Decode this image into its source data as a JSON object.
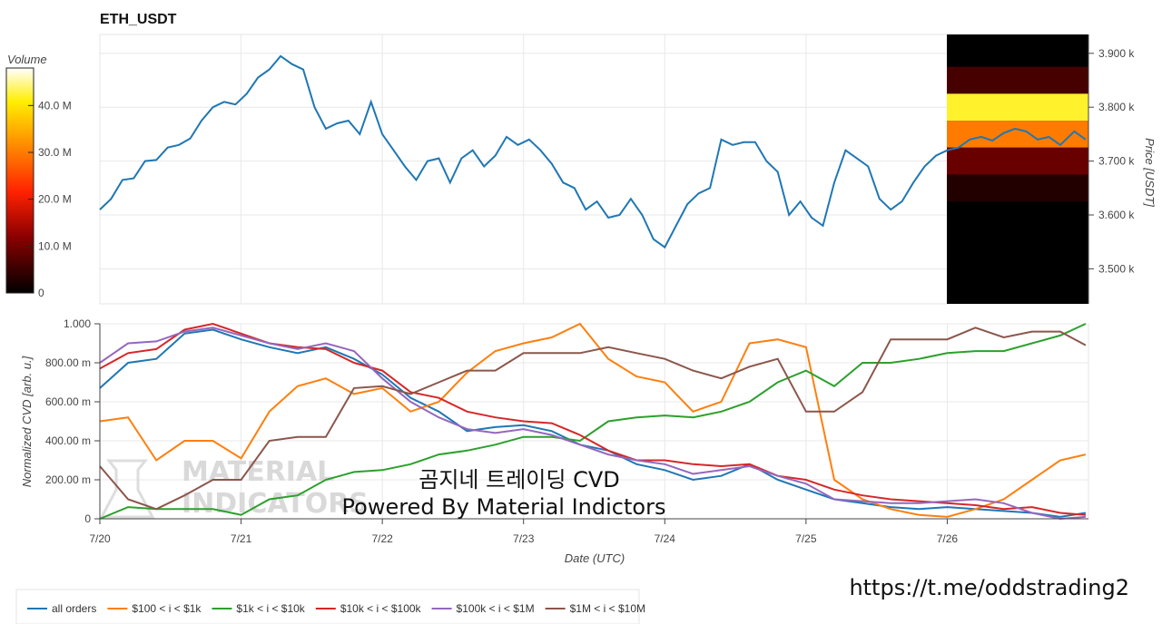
{
  "chart_data": [
    {
      "type": "line",
      "title": "ETH_USDT",
      "ylabel": "Price [USDT]",
      "ylim": [
        3435,
        3935
      ],
      "y_ticks": [
        "3.900 k",
        "3.800 k",
        "3.700 k",
        "3.600 k",
        "3.500 k"
      ],
      "x_ticks": [
        "7/20",
        "7/21",
        "7/22",
        "7/23",
        "7/24",
        "7/25",
        "7/26"
      ],
      "series": [
        {
          "color": "#1f77b4",
          "x": [
            0.0,
            0.08,
            0.16,
            0.24,
            0.32,
            0.4,
            0.48,
            0.56,
            0.64,
            0.72,
            0.8,
            0.88,
            0.96,
            1.04,
            1.12,
            1.2,
            1.28,
            1.36,
            1.44,
            1.52,
            1.6,
            1.68,
            1.76,
            1.84,
            1.92,
            2.0,
            2.08,
            2.16,
            2.24,
            2.32,
            2.4,
            2.48,
            2.56,
            2.64,
            2.72,
            2.8,
            2.88,
            2.96,
            3.04,
            3.12,
            3.2,
            3.28,
            3.36,
            3.44,
            3.52,
            3.6,
            3.68,
            3.76,
            3.84,
            3.92,
            4.0,
            4.08,
            4.16,
            4.24,
            4.32,
            4.4,
            4.48,
            4.56,
            4.64,
            4.72,
            4.8,
            4.88,
            4.96,
            5.04,
            5.12,
            5.2,
            5.28,
            5.36,
            5.44,
            5.52,
            5.6,
            5.68,
            5.76,
            5.84,
            5.92,
            6.0,
            6.08,
            6.16,
            6.24,
            6.32,
            6.4,
            6.48,
            6.56,
            6.64,
            6.72,
            6.8,
            6.9,
            6.98
          ],
          "values": [
            3610,
            3630,
            3665,
            3668,
            3700,
            3702,
            3725,
            3730,
            3742,
            3775,
            3800,
            3810,
            3805,
            3825,
            3855,
            3870,
            3895,
            3880,
            3870,
            3800,
            3760,
            3770,
            3775,
            3750,
            3810,
            3750,
            3720,
            3690,
            3665,
            3700,
            3705,
            3660,
            3705,
            3720,
            3690,
            3710,
            3745,
            3730,
            3740,
            3720,
            3695,
            3660,
            3650,
            3610,
            3625,
            3595,
            3600,
            3630,
            3600,
            3555,
            3540,
            3580,
            3620,
            3640,
            3650,
            3740,
            3730,
            3735,
            3735,
            3700,
            3680,
            3600,
            3625,
            3595,
            3580,
            3660,
            3720,
            3705,
            3690,
            3630,
            3610,
            3625,
            3660,
            3690,
            3710,
            3720,
            3725,
            3740,
            3745,
            3738,
            3752,
            3760,
            3755,
            3740,
            3745,
            3730,
            3755,
            3740
          ]
        }
      ]
    },
    {
      "type": "heatmap",
      "colorbar_title": "Volume",
      "colorbar_ticks": [
        "40.0 M",
        "30.0 M",
        "20.0 M",
        "10.0 M",
        "0"
      ],
      "colorbar_range": [
        0,
        48
      ],
      "x_range": [
        6.0,
        6.98
      ],
      "rows": [
        {
          "from": 3875,
          "to": 3935,
          "value": 0
        },
        {
          "from": 3825,
          "to": 3875,
          "value": 6
        },
        {
          "from": 3775,
          "to": 3825,
          "value": 42
        },
        {
          "from": 3725,
          "to": 3775,
          "value": 30
        },
        {
          "from": 3675,
          "to": 3725,
          "value": 9
        },
        {
          "from": 3625,
          "to": 3675,
          "value": 3
        },
        {
          "from": 3435,
          "to": 3625,
          "value": 0
        }
      ]
    },
    {
      "type": "line",
      "xlabel": "Date (UTC)",
      "ylabel": "Normalized CVD [arb. u.]",
      "ylim": [
        0,
        1.0
      ],
      "y_ticks": [
        "1.000",
        "800.00 m",
        "600.00 m",
        "400.00 m",
        "200.00 m",
        "0"
      ],
      "x_ticks": [
        "7/20",
        "7/21",
        "7/22",
        "7/23",
        "7/24",
        "7/25",
        "7/26"
      ],
      "x": [
        0.0,
        0.2,
        0.4,
        0.6,
        0.8,
        1.0,
        1.2,
        1.4,
        1.6,
        1.8,
        2.0,
        2.2,
        2.4,
        2.6,
        2.8,
        3.0,
        3.2,
        3.4,
        3.6,
        3.8,
        4.0,
        4.2,
        4.4,
        4.6,
        4.8,
        5.0,
        5.2,
        5.4,
        5.6,
        5.8,
        6.0,
        6.2,
        6.4,
        6.6,
        6.8,
        6.98
      ],
      "series": [
        {
          "name": "all orders",
          "color": "#1f77b4",
          "values": [
            0.67,
            0.8,
            0.82,
            0.95,
            0.97,
            0.92,
            0.88,
            0.85,
            0.88,
            0.82,
            0.74,
            0.62,
            0.55,
            0.45,
            0.47,
            0.48,
            0.45,
            0.38,
            0.35,
            0.28,
            0.25,
            0.2,
            0.22,
            0.28,
            0.2,
            0.15,
            0.1,
            0.08,
            0.06,
            0.05,
            0.06,
            0.05,
            0.04,
            0.03,
            0.01,
            0.03
          ]
        },
        {
          "name": "$100 < i < $1k",
          "color": "#ff7f0e",
          "values": [
            0.5,
            0.52,
            0.3,
            0.4,
            0.4,
            0.31,
            0.55,
            0.68,
            0.72,
            0.64,
            0.67,
            0.55,
            0.6,
            0.75,
            0.86,
            0.9,
            0.93,
            1.0,
            0.82,
            0.73,
            0.7,
            0.55,
            0.6,
            0.9,
            0.92,
            0.88,
            0.2,
            0.1,
            0.05,
            0.02,
            0.01,
            0.05,
            0.1,
            0.2,
            0.3,
            0.33
          ]
        },
        {
          "name": "$1k < i < $10k",
          "color": "#2ca02c",
          "values": [
            0.0,
            0.06,
            0.05,
            0.05,
            0.05,
            0.02,
            0.1,
            0.12,
            0.2,
            0.24,
            0.25,
            0.28,
            0.33,
            0.35,
            0.38,
            0.42,
            0.42,
            0.4,
            0.5,
            0.52,
            0.53,
            0.52,
            0.55,
            0.6,
            0.7,
            0.76,
            0.68,
            0.8,
            0.8,
            0.82,
            0.85,
            0.86,
            0.86,
            0.9,
            0.94,
            1.0
          ]
        },
        {
          "name": "$10k < i < $100k",
          "color": "#d62728",
          "values": [
            0.77,
            0.85,
            0.87,
            0.97,
            1.0,
            0.95,
            0.9,
            0.88,
            0.87,
            0.8,
            0.76,
            0.65,
            0.62,
            0.55,
            0.52,
            0.5,
            0.49,
            0.43,
            0.35,
            0.3,
            0.3,
            0.28,
            0.27,
            0.28,
            0.22,
            0.2,
            0.15,
            0.12,
            0.1,
            0.09,
            0.08,
            0.07,
            0.05,
            0.06,
            0.03,
            0.02
          ]
        },
        {
          "name": "$100k < i < $1M",
          "color": "#9467bd",
          "values": [
            0.8,
            0.9,
            0.91,
            0.96,
            0.98,
            0.94,
            0.9,
            0.87,
            0.9,
            0.86,
            0.72,
            0.6,
            0.52,
            0.46,
            0.44,
            0.46,
            0.43,
            0.38,
            0.33,
            0.3,
            0.28,
            0.23,
            0.25,
            0.27,
            0.22,
            0.18,
            0.1,
            0.09,
            0.08,
            0.08,
            0.09,
            0.1,
            0.08,
            0.03,
            0.0,
            0.01
          ]
        },
        {
          "name": "$1M < i < $10M",
          "color": "#8c564b",
          "values": [
            0.27,
            0.1,
            0.05,
            0.12,
            0.2,
            0.2,
            0.4,
            0.42,
            0.42,
            0.67,
            0.68,
            0.64,
            0.7,
            0.76,
            0.76,
            0.85,
            0.85,
            0.85,
            0.88,
            0.85,
            0.82,
            0.76,
            0.72,
            0.78,
            0.82,
            0.55,
            0.55,
            0.65,
            0.92,
            0.92,
            0.92,
            0.98,
            0.93,
            0.96,
            0.96,
            0.89
          ]
        }
      ]
    }
  ],
  "overlay": {
    "line1": "곰지네 트레이딩 CVD",
    "line2": "Powered By Material Indictors"
  },
  "watermark": {
    "line1": "MATERIAL",
    "line2": "INDICATORS"
  },
  "url": "https://t.me/oddstrading2"
}
